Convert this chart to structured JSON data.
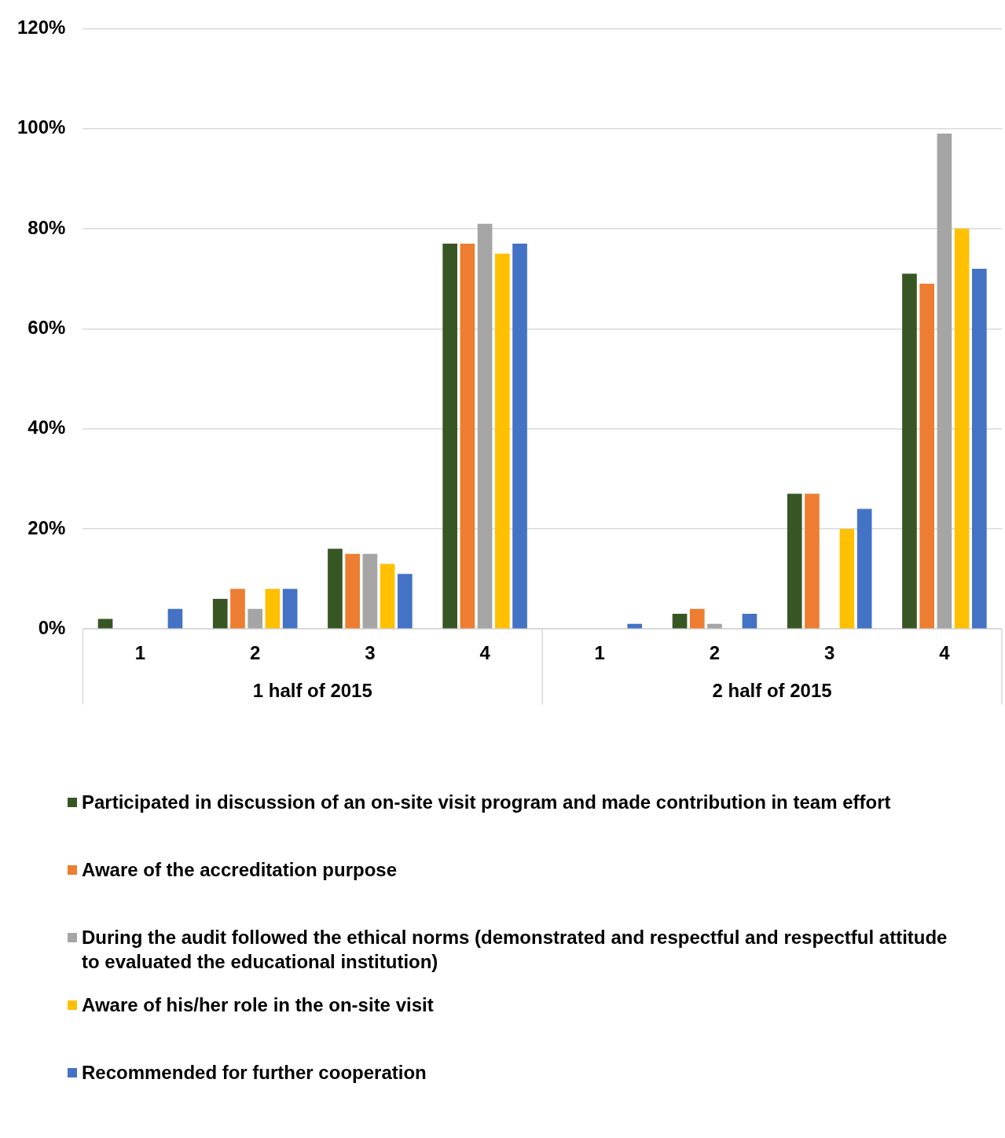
{
  "chart_data": {
    "type": "bar",
    "categories": [
      "1",
      "2",
      "3",
      "4",
      "1",
      "2",
      "3",
      "4"
    ],
    "annotations": [
      "1 half of 2015",
      "2 half of 2015"
    ],
    "series": [
      {
        "name": "Participated in discussion of an on-site visit program and made contribution in team effort",
        "color": "#375623",
        "values": [
          2,
          6,
          16,
          77,
          0,
          3,
          27,
          71
        ]
      },
      {
        "name": "Aware of the accreditation purpose",
        "color": "#ed7d31",
        "values": [
          0,
          8,
          15,
          77,
          0,
          4,
          27,
          69
        ]
      },
      {
        "name": "During the audit followed the ethical norms (demonstrated and respectful and respectful attitude to evaluated the educational institution)",
        "color": "#a5a5a5",
        "values": [
          0,
          4,
          15,
          81,
          0,
          1,
          0,
          99
        ]
      },
      {
        "name": "Aware of his/her role in the on-site visit",
        "color": "#ffc000",
        "values": [
          0,
          8,
          13,
          75,
          0,
          0,
          20,
          80
        ]
      },
      {
        "name": "Recommended for further cooperation",
        "color": "#4472c4",
        "values": [
          4,
          8,
          11,
          77,
          1,
          3,
          24,
          72
        ]
      }
    ],
    "ylim": [
      0,
      120
    ],
    "yticks": [
      {
        "value": 0,
        "label": "0%"
      },
      {
        "value": 20,
        "label": "20%"
      },
      {
        "value": 40,
        "label": "40%"
      },
      {
        "value": 60,
        "label": "60%"
      },
      {
        "value": 80,
        "label": "80%"
      },
      {
        "value": 100,
        "label": "100%"
      },
      {
        "value": 120,
        "label": "120%"
      }
    ],
    "grid": "y",
    "legend": "bottom"
  }
}
